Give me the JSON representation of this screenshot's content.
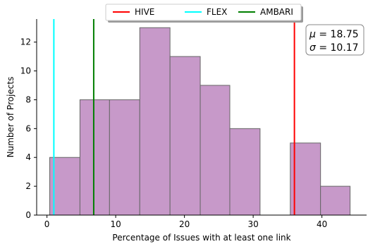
{
  "chart_data": {
    "type": "bar",
    "title": "",
    "xlabel": "Percentage of Issues with at least one link",
    "ylabel": "Number of Projects",
    "xlim": [
      -1.5,
      46.5
    ],
    "ylim": [
      0,
      13.6
    ],
    "xticks": [
      0,
      10,
      20,
      30,
      40
    ],
    "yticks": [
      0,
      2,
      4,
      6,
      8,
      10,
      12
    ],
    "grid": false,
    "bar_color": "#c799c9",
    "bar_edge_color": "#666666",
    "bins": [
      {
        "x0": 0.4,
        "x1": 4.8,
        "value": 4
      },
      {
        "x0": 4.8,
        "x1": 9.1,
        "value": 8
      },
      {
        "x0": 9.1,
        "x1": 13.5,
        "value": 8
      },
      {
        "x0": 13.5,
        "x1": 17.9,
        "value": 13
      },
      {
        "x0": 17.9,
        "x1": 22.3,
        "value": 11
      },
      {
        "x0": 22.3,
        "x1": 26.6,
        "value": 9
      },
      {
        "x0": 26.6,
        "x1": 31.0,
        "value": 6
      },
      {
        "x0": 31.0,
        "x1": 35.4,
        "value": 0
      },
      {
        "x0": 35.4,
        "x1": 39.8,
        "value": 5
      },
      {
        "x0": 39.8,
        "x1": 44.1,
        "value": 2
      }
    ],
    "vlines": [
      {
        "name": "HIVE",
        "x": 36.0,
        "color": "#ff0000"
      },
      {
        "name": "FLEX",
        "x": 1.0,
        "color": "#00ffff"
      },
      {
        "name": "AMBARI",
        "x": 6.8,
        "color": "#007f00"
      }
    ],
    "legend_position": "top-center",
    "annotation": {
      "mu_symbol": "μ",
      "mu_value": " = 18.75",
      "sigma_symbol": "σ",
      "sigma_value": " = 10.17",
      "position": "top-right"
    }
  }
}
